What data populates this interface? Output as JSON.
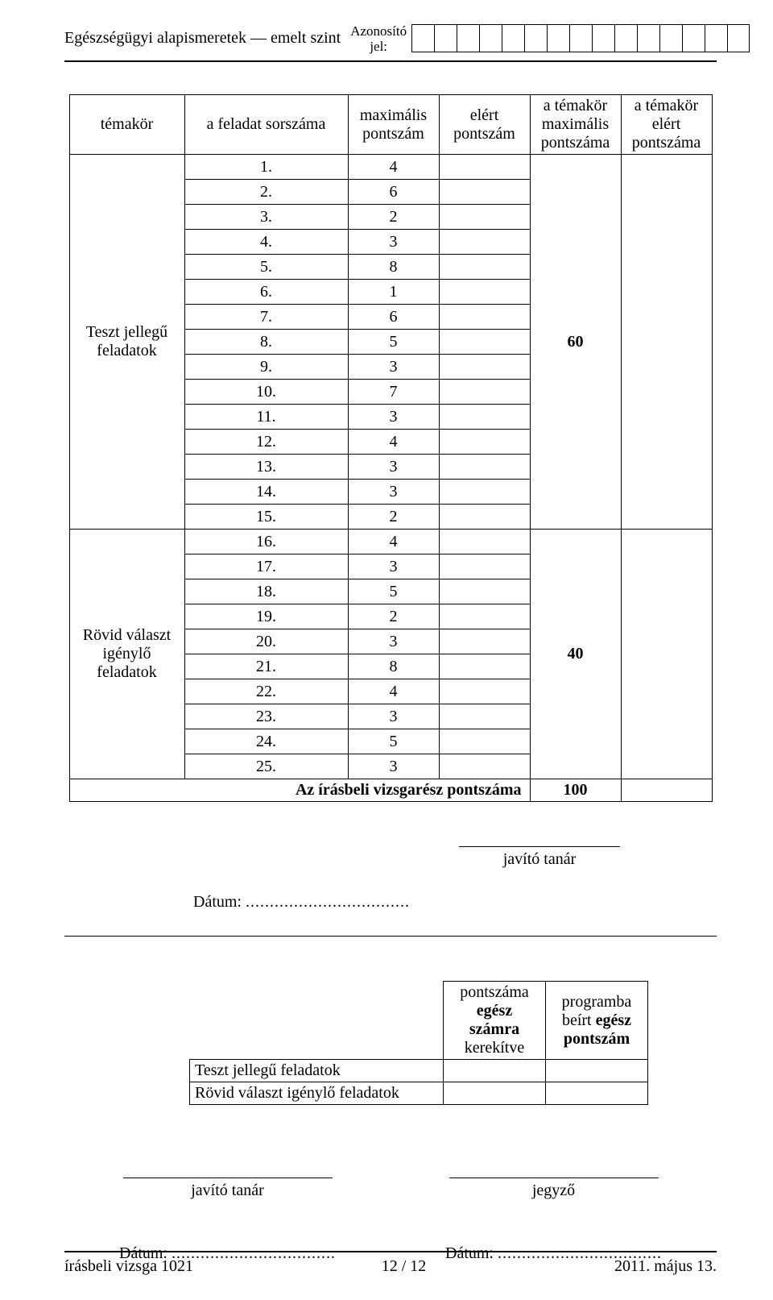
{
  "header": {
    "subject": "Egészségügyi alapismeretek — emelt szint",
    "id_label_line1": "Azonosító",
    "id_label_line2": "jel:",
    "id_box_count": 15
  },
  "score_table": {
    "headers": {
      "temakor": "témakör",
      "sorszam": "a feladat sorszáma",
      "max": "maximális\npontszám",
      "elert": "elért\npontszám",
      "t_max": "a témakör\nmaximális\npontszáma",
      "t_elert": "a témakör\nelért\npontszáma"
    },
    "groups": [
      {
        "label": "Teszt jellegű\nfeladatok",
        "subtotal_max": "60",
        "rows": [
          {
            "n": "1.",
            "max": "4"
          },
          {
            "n": "2.",
            "max": "6"
          },
          {
            "n": "3.",
            "max": "2"
          },
          {
            "n": "4.",
            "max": "3"
          },
          {
            "n": "5.",
            "max": "8"
          },
          {
            "n": "6.",
            "max": "1"
          },
          {
            "n": "7.",
            "max": "6"
          },
          {
            "n": "8.",
            "max": "5"
          },
          {
            "n": "9.",
            "max": "3"
          },
          {
            "n": "10.",
            "max": "7"
          },
          {
            "n": "11.",
            "max": "3"
          },
          {
            "n": "12.",
            "max": "4"
          },
          {
            "n": "13.",
            "max": "3"
          },
          {
            "n": "14.",
            "max": "3"
          },
          {
            "n": "15.",
            "max": "2"
          }
        ]
      },
      {
        "label": "Rövid választ\nigénylő\nfeladatok",
        "subtotal_max": "40",
        "rows": [
          {
            "n": "16.",
            "max": "4"
          },
          {
            "n": "17.",
            "max": "3"
          },
          {
            "n": "18.",
            "max": "5"
          },
          {
            "n": "19.",
            "max": "2"
          },
          {
            "n": "20.",
            "max": "3"
          },
          {
            "n": "21.",
            "max": "8"
          },
          {
            "n": "22.",
            "max": "4"
          },
          {
            "n": "23.",
            "max": "3"
          },
          {
            "n": "24.",
            "max": "5"
          },
          {
            "n": "25.",
            "max": "3"
          }
        ]
      }
    ],
    "total_label": "Az írásbeli vizsgarész pontszáma",
    "total_max": "100"
  },
  "signatures": {
    "javito": "javító tanár",
    "jegyzo": "jegyző",
    "datum_label": "Dátum:",
    "dots": ".................................."
  },
  "mini_table": {
    "col1": "pontszáma\negész\nszámra\nkerekítve",
    "col2": "programba\nbeírt egész\npontszám",
    "rows": [
      "Teszt jellegű feladatok",
      "Rövid választ igénylő feladatok"
    ]
  },
  "footer": {
    "left": "írásbeli vizsga 1021",
    "center": "12 / 12",
    "right": "2011. május 13."
  }
}
